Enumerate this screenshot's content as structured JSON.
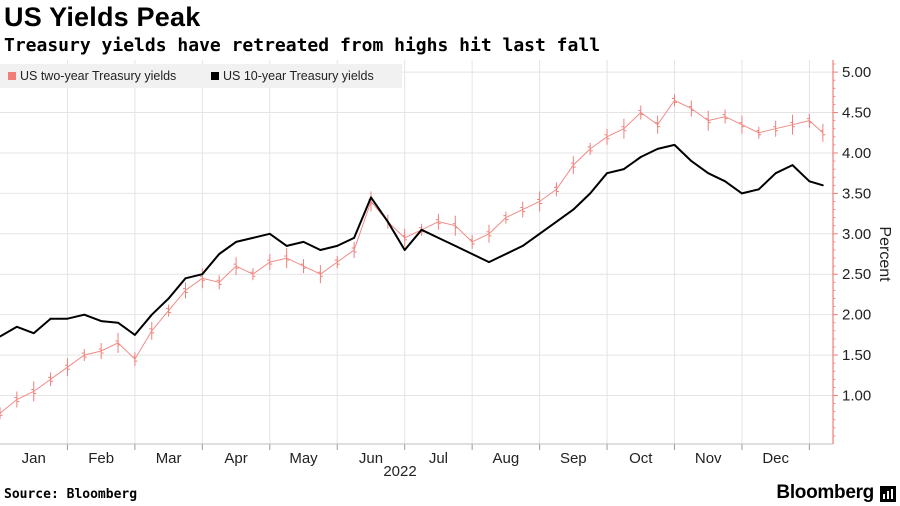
{
  "title": "US Yields Peak",
  "subtitle": "Treasury yields have retreated from highs hit last fall",
  "source": "Source: Bloomberg",
  "brand": "Bloomberg",
  "chart_data": {
    "type": "line",
    "title": "US Yields Peak",
    "xlabel": "2022",
    "ylabel": "Percent",
    "ylim": [
      0.4,
      5.15
    ],
    "yticks": [
      1.0,
      1.5,
      2.0,
      2.5,
      3.0,
      3.5,
      4.0,
      4.5,
      5.0
    ],
    "ytick_labels": [
      "1.00",
      "1.50",
      "2.00",
      "2.50",
      "3.00",
      "3.50",
      "4.00",
      "4.50",
      "5.00"
    ],
    "xlim": [
      0,
      12.35
    ],
    "x_categories": [
      "Jan",
      "Feb",
      "Mar",
      "Apr",
      "May",
      "Jun",
      "Jul",
      "Aug",
      "Sep",
      "Oct",
      "Nov",
      "Dec"
    ],
    "x_category_positions": [
      0.5,
      1.5,
      2.5,
      3.5,
      4.5,
      5.5,
      6.5,
      7.5,
      8.5,
      9.5,
      10.5,
      11.5
    ],
    "x_year_label": "2022",
    "grid": true,
    "legend_position": "top-left",
    "series": [
      {
        "name": "US two-year Treasury yields",
        "color": "#f07f7a",
        "style": "ohlc",
        "x": [
          0.0,
          0.25,
          0.5,
          0.75,
          1.0,
          1.25,
          1.5,
          1.75,
          2.0,
          2.25,
          2.5,
          2.75,
          3.0,
          3.25,
          3.5,
          3.75,
          4.0,
          4.25,
          4.5,
          4.75,
          5.0,
          5.25,
          5.5,
          5.75,
          6.0,
          6.25,
          6.5,
          6.75,
          7.0,
          7.25,
          7.5,
          7.75,
          8.0,
          8.25,
          8.5,
          8.75,
          9.0,
          9.25,
          9.5,
          9.75,
          10.0,
          10.25,
          10.5,
          10.75,
          11.0,
          11.25,
          11.5,
          11.75,
          12.0,
          12.2
        ],
        "values": [
          0.78,
          0.95,
          1.05,
          1.2,
          1.35,
          1.5,
          1.55,
          1.65,
          1.45,
          1.8,
          2.05,
          2.3,
          2.45,
          2.4,
          2.6,
          2.5,
          2.65,
          2.7,
          2.6,
          2.5,
          2.65,
          2.8,
          3.4,
          3.15,
          2.95,
          3.05,
          3.15,
          3.1,
          2.9,
          3.0,
          3.2,
          3.3,
          3.4,
          3.55,
          3.85,
          4.05,
          4.2,
          4.3,
          4.5,
          4.35,
          4.65,
          4.55,
          4.4,
          4.45,
          4.35,
          4.25,
          4.3,
          4.35,
          4.4,
          4.25
        ]
      },
      {
        "name": "US 10-year Treasury yields",
        "color": "#000000",
        "style": "line",
        "x": [
          0.0,
          0.25,
          0.5,
          0.75,
          1.0,
          1.25,
          1.5,
          1.75,
          2.0,
          2.25,
          2.5,
          2.75,
          3.0,
          3.25,
          3.5,
          3.75,
          4.0,
          4.25,
          4.5,
          4.75,
          5.0,
          5.25,
          5.5,
          5.75,
          6.0,
          6.25,
          6.5,
          6.75,
          7.0,
          7.25,
          7.5,
          7.75,
          8.0,
          8.25,
          8.5,
          8.75,
          9.0,
          9.25,
          9.5,
          9.75,
          10.0,
          10.25,
          10.5,
          10.75,
          11.0,
          11.25,
          11.5,
          11.75,
          12.0,
          12.2
        ],
        "values": [
          1.73,
          1.85,
          1.77,
          1.95,
          1.95,
          2.0,
          1.92,
          1.9,
          1.75,
          2.0,
          2.2,
          2.45,
          2.5,
          2.75,
          2.9,
          2.95,
          3.0,
          2.85,
          2.9,
          2.8,
          2.85,
          2.95,
          3.45,
          3.15,
          2.8,
          3.05,
          2.95,
          2.85,
          2.75,
          2.65,
          2.75,
          2.85,
          3.0,
          3.15,
          3.3,
          3.5,
          3.75,
          3.8,
          3.95,
          4.05,
          4.1,
          3.9,
          3.75,
          3.65,
          3.5,
          3.55,
          3.75,
          3.85,
          3.65,
          3.6
        ]
      }
    ]
  }
}
